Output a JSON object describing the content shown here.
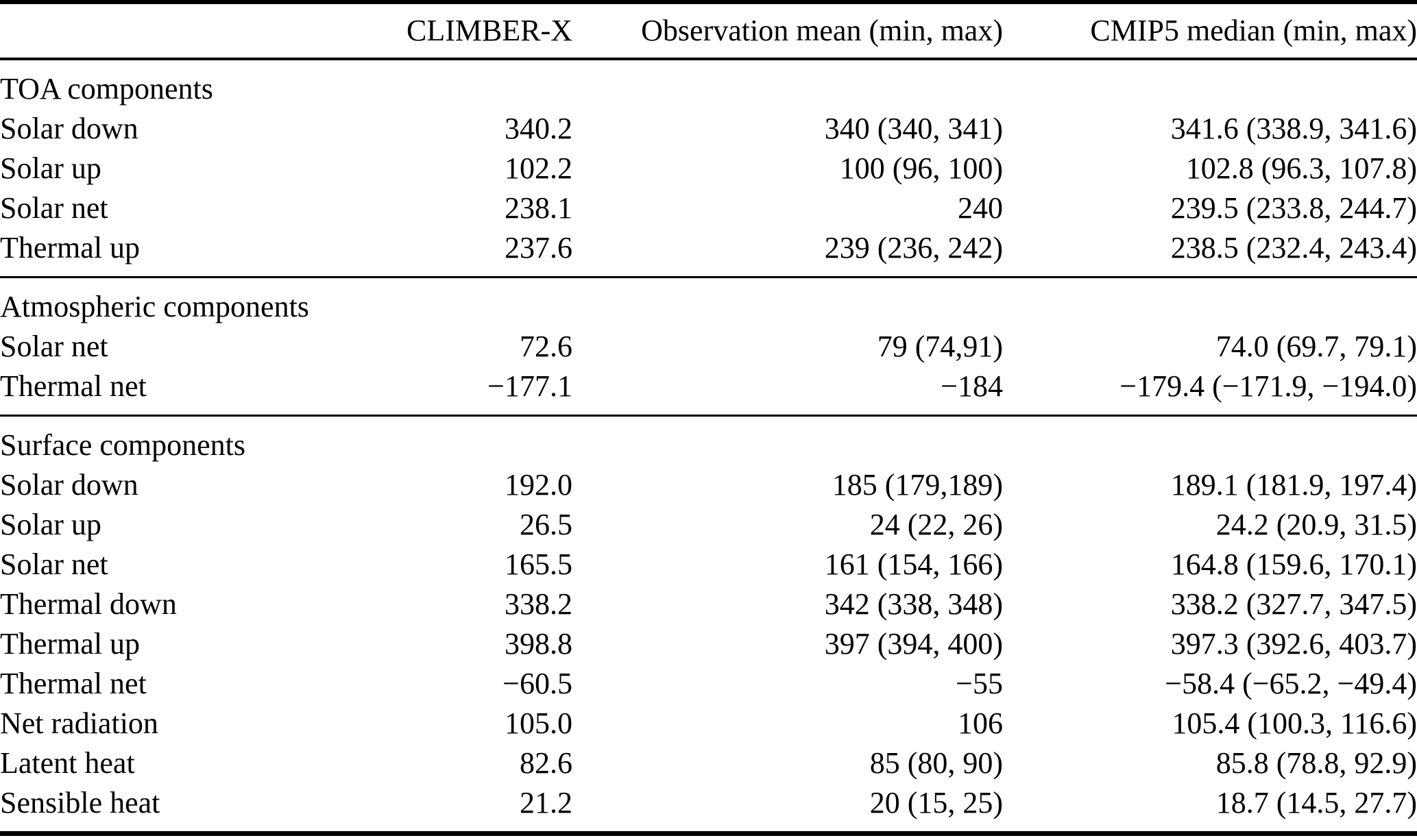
{
  "table": {
    "columns": [
      "",
      "CLIMBER-X",
      "Observation mean (min, max)",
      "CMIP5 median (min, max)"
    ],
    "sections": [
      {
        "title": "TOA components",
        "rows": [
          {
            "label": "Solar down",
            "climber_x": "340.2",
            "observation": "340 (340, 341)",
            "cmip5": "341.6 (338.9, 341.6)"
          },
          {
            "label": "Solar up",
            "climber_x": "102.2",
            "observation": "100 (96, 100)",
            "cmip5": "102.8 (96.3, 107.8)"
          },
          {
            "label": "Solar net",
            "climber_x": "238.1",
            "observation": "240",
            "cmip5": "239.5 (233.8, 244.7)"
          },
          {
            "label": "Thermal up",
            "climber_x": "237.6",
            "observation": "239 (236, 242)",
            "cmip5": "238.5 (232.4, 243.4)"
          }
        ]
      },
      {
        "title": "Atmospheric components",
        "rows": [
          {
            "label": "Solar net",
            "climber_x": "72.6",
            "observation": "79 (74,91)",
            "cmip5": "74.0 (69.7, 79.1)"
          },
          {
            "label": "Thermal net",
            "climber_x": "−177.1",
            "observation": "−184",
            "cmip5": "−179.4 (−171.9, −194.0)"
          }
        ]
      },
      {
        "title": "Surface components",
        "rows": [
          {
            "label": "Solar down",
            "climber_x": "192.0",
            "observation": "185 (179,189)",
            "cmip5": "189.1 (181.9, 197.4)"
          },
          {
            "label": "Solar up",
            "climber_x": "26.5",
            "observation": "24 (22, 26)",
            "cmip5": "24.2 (20.9, 31.5)"
          },
          {
            "label": "Solar net",
            "climber_x": "165.5",
            "observation": "161 (154, 166)",
            "cmip5": "164.8 (159.6, 170.1)"
          },
          {
            "label": "Thermal down",
            "climber_x": "338.2",
            "observation": "342 (338, 348)",
            "cmip5": "338.2 (327.7, 347.5)"
          },
          {
            "label": "Thermal up",
            "climber_x": "398.8",
            "observation": "397 (394, 400)",
            "cmip5": "397.3 (392.6, 403.7)"
          },
          {
            "label": "Thermal net",
            "climber_x": "−60.5",
            "observation": "−55",
            "cmip5": "−58.4 (−65.2, −49.4)"
          },
          {
            "label": "Net radiation",
            "climber_x": "105.0",
            "observation": "106",
            "cmip5": "105.4 (100.3, 116.6)"
          },
          {
            "label": "Latent heat",
            "climber_x": "82.6",
            "observation": "85 (80, 90)",
            "cmip5": "85.8 (78.8, 92.9)"
          },
          {
            "label": "Sensible heat",
            "climber_x": "21.2",
            "observation": "20 (15, 25)",
            "cmip5": "18.7 (14.5, 27.7)"
          }
        ]
      }
    ]
  }
}
